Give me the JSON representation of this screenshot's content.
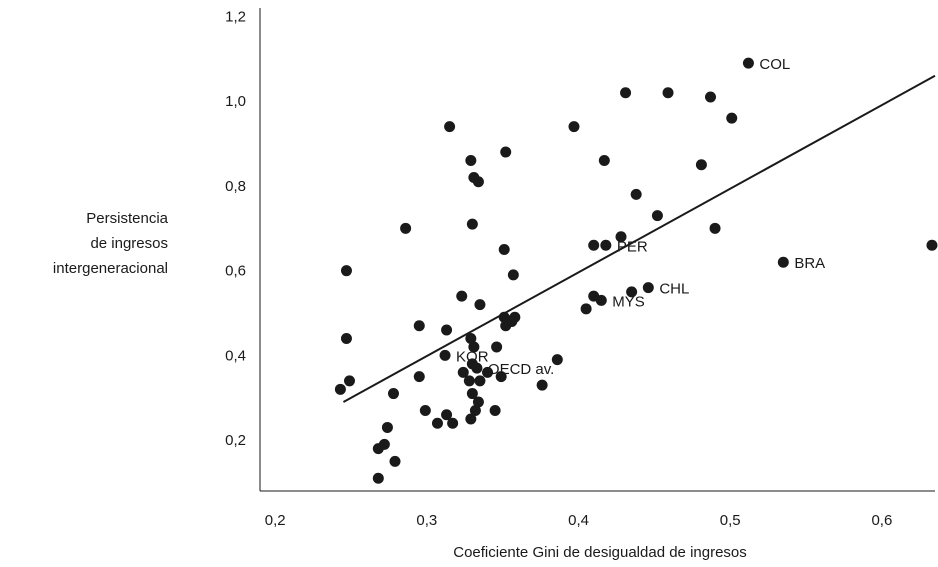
{
  "chart_data": {
    "type": "scatter",
    "title": "",
    "xlabel": "Coeficiente Gini de desigualdad de ingresos",
    "ylabel_lines": [
      "Persistencia",
      "de ingresos",
      "intergeneracional"
    ],
    "xlim": [
      0.19,
      0.635
    ],
    "ylim": [
      0.08,
      1.22
    ],
    "xticks": [
      0.2,
      0.3,
      0.4,
      0.5,
      0.6
    ],
    "xtick_labels": [
      "0,2",
      "0,3",
      "0,4",
      "0,5",
      "0,6"
    ],
    "yticks": [
      0.2,
      0.4,
      0.6,
      0.8,
      1.0,
      1.2
    ],
    "ytick_labels": [
      "0,2",
      "0,4",
      "0,6",
      "0,8",
      "1,0",
      "1,2"
    ],
    "grid": false,
    "point_color": "#1a1a1a",
    "trendline": {
      "x": [
        0.245,
        0.635
      ],
      "y": [
        0.29,
        1.06
      ]
    },
    "points": [
      {
        "x": 0.512,
        "y": 1.09,
        "label": "COL"
      },
      {
        "x": 0.431,
        "y": 1.02
      },
      {
        "x": 0.459,
        "y": 1.02
      },
      {
        "x": 0.487,
        "y": 1.01
      },
      {
        "x": 0.501,
        "y": 0.96
      },
      {
        "x": 0.315,
        "y": 0.94
      },
      {
        "x": 0.397,
        "y": 0.94
      },
      {
        "x": 0.352,
        "y": 0.88
      },
      {
        "x": 0.329,
        "y": 0.86
      },
      {
        "x": 0.417,
        "y": 0.86
      },
      {
        "x": 0.481,
        "y": 0.85
      },
      {
        "x": 0.331,
        "y": 0.82
      },
      {
        "x": 0.334,
        "y": 0.81
      },
      {
        "x": 0.438,
        "y": 0.78
      },
      {
        "x": 0.452,
        "y": 0.73
      },
      {
        "x": 0.33,
        "y": 0.71
      },
      {
        "x": 0.286,
        "y": 0.7
      },
      {
        "x": 0.49,
        "y": 0.7
      },
      {
        "x": 0.428,
        "y": 0.68
      },
      {
        "x": 0.41,
        "y": 0.66
      },
      {
        "x": 0.418,
        "y": 0.66,
        "label": "PER"
      },
      {
        "x": 0.351,
        "y": 0.65
      },
      {
        "x": 0.633,
        "y": 0.66
      },
      {
        "x": 0.535,
        "y": 0.62,
        "label": "BRA"
      },
      {
        "x": 0.247,
        "y": 0.6
      },
      {
        "x": 0.357,
        "y": 0.59
      },
      {
        "x": 0.446,
        "y": 0.56,
        "label": "CHL"
      },
      {
        "x": 0.435,
        "y": 0.55
      },
      {
        "x": 0.323,
        "y": 0.54
      },
      {
        "x": 0.41,
        "y": 0.54
      },
      {
        "x": 0.415,
        "y": 0.53,
        "label": "MYS"
      },
      {
        "x": 0.335,
        "y": 0.52
      },
      {
        "x": 0.405,
        "y": 0.51
      },
      {
        "x": 0.351,
        "y": 0.49
      },
      {
        "x": 0.356,
        "y": 0.48
      },
      {
        "x": 0.358,
        "y": 0.49
      },
      {
        "x": 0.352,
        "y": 0.47
      },
      {
        "x": 0.295,
        "y": 0.47
      },
      {
        "x": 0.313,
        "y": 0.46
      },
      {
        "x": 0.247,
        "y": 0.44
      },
      {
        "x": 0.329,
        "y": 0.44
      },
      {
        "x": 0.346,
        "y": 0.42
      },
      {
        "x": 0.331,
        "y": 0.42
      },
      {
        "x": 0.312,
        "y": 0.4,
        "label": "KOR"
      },
      {
        "x": 0.386,
        "y": 0.39
      },
      {
        "x": 0.33,
        "y": 0.38
      },
      {
        "x": 0.333,
        "y": 0.37,
        "label": "OECD av."
      },
      {
        "x": 0.34,
        "y": 0.36
      },
      {
        "x": 0.324,
        "y": 0.36
      },
      {
        "x": 0.349,
        "y": 0.35
      },
      {
        "x": 0.295,
        "y": 0.35
      },
      {
        "x": 0.335,
        "y": 0.34
      },
      {
        "x": 0.249,
        "y": 0.34
      },
      {
        "x": 0.328,
        "y": 0.34
      },
      {
        "x": 0.376,
        "y": 0.33
      },
      {
        "x": 0.243,
        "y": 0.32
      },
      {
        "x": 0.33,
        "y": 0.31
      },
      {
        "x": 0.278,
        "y": 0.31
      },
      {
        "x": 0.334,
        "y": 0.29
      },
      {
        "x": 0.345,
        "y": 0.27
      },
      {
        "x": 0.299,
        "y": 0.27
      },
      {
        "x": 0.332,
        "y": 0.27
      },
      {
        "x": 0.313,
        "y": 0.26
      },
      {
        "x": 0.329,
        "y": 0.25
      },
      {
        "x": 0.307,
        "y": 0.24
      },
      {
        "x": 0.317,
        "y": 0.24
      },
      {
        "x": 0.274,
        "y": 0.23
      },
      {
        "x": 0.272,
        "y": 0.19
      },
      {
        "x": 0.268,
        "y": 0.18
      },
      {
        "x": 0.279,
        "y": 0.15
      },
      {
        "x": 0.268,
        "y": 0.11
      }
    ]
  }
}
